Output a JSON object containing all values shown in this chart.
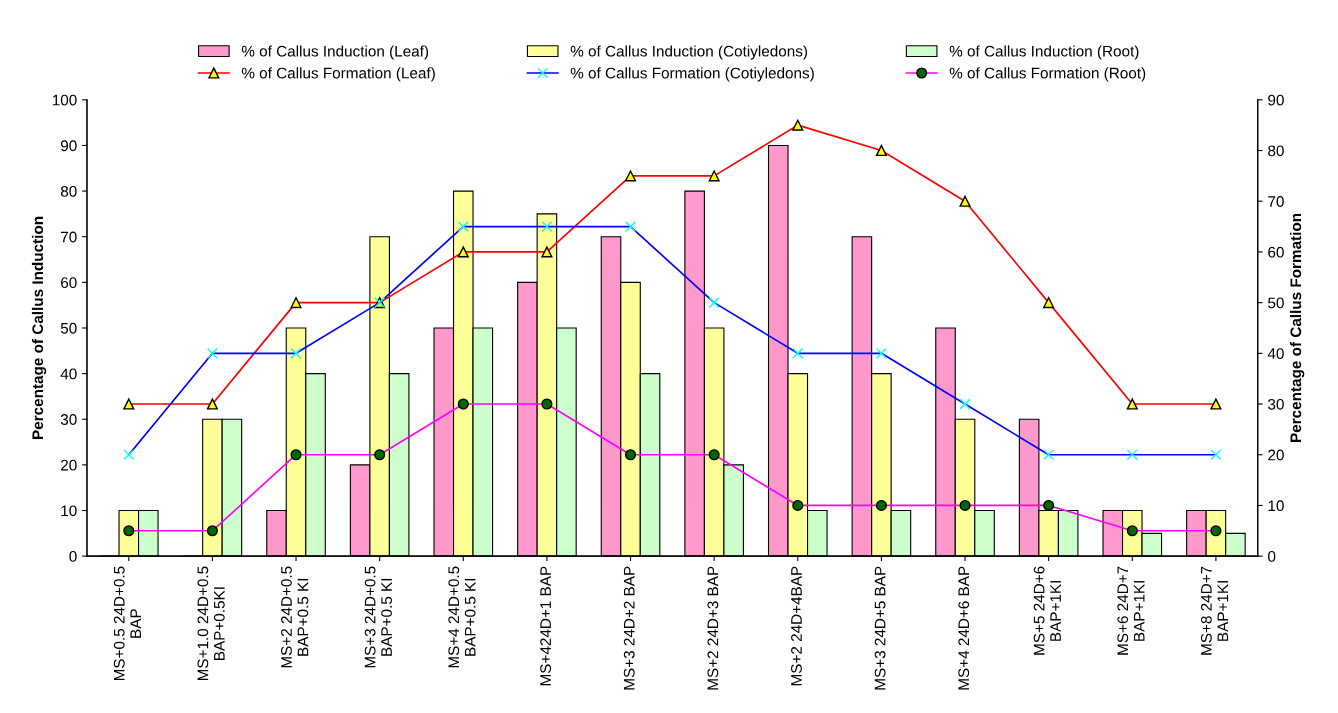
{
  "chart_data": {
    "type": "bar",
    "ylabel": "Percentage of Callus Induction",
    "y2label": "Percentage of Callus Formation",
    "categories": [
      "MS+0.5 24D+0.5\nBAP",
      "MS+1.0 24D+0.5\nBAP+0.5KI",
      "MS+2 24D+0.5\nBAP+0.5 KI",
      "MS+3 24D+0.5\nBAP+0.5 KI",
      "MS+4 24D+0.5\nBAP+0.5 KI",
      "MS+424D+1 BAP",
      "MS+3 24D+2 BAP",
      "MS+2 24D+3 BAP",
      "MS+2 24D+4BAP",
      "MS+3 24D+5 BAP",
      "MS+4 24D+6 BAP",
      "MS+5 24D+6\nBAP+1KI",
      "MS+6 24D+7\nBAP+1KI",
      "MS+8 24D+7\nBAP+1KI"
    ],
    "series": [
      {
        "name": "% of Callus Induction (Leaf)",
        "color": "#ff99cc",
        "values": [
          0,
          0,
          10,
          20,
          50,
          60,
          70,
          80,
          90,
          70,
          50,
          30,
          10,
          10
        ]
      },
      {
        "name": "% of Callus Induction (Cotiyledons)",
        "color": "#ffff99",
        "values": [
          10,
          30,
          50,
          70,
          80,
          75,
          60,
          50,
          40,
          40,
          30,
          10,
          10,
          10
        ]
      },
      {
        "name": "% of Callus Induction (Root)",
        "color": "#ccffcc",
        "values": [
          10,
          30,
          40,
          40,
          50,
          50,
          40,
          20,
          10,
          10,
          10,
          10,
          5,
          5
        ]
      },
      {
        "name": "% of Callus Formation (Leaf)",
        "type": "line",
        "axis": "y2",
        "color": "#ff0000",
        "marker": "triangle",
        "values": [
          30,
          30,
          50,
          50,
          60,
          60,
          75,
          75,
          85,
          80,
          70,
          50,
          30,
          30
        ]
      },
      {
        "name": "% of Callus Formation (Cotiyledons)",
        "type": "line",
        "axis": "y2",
        "color": "#0000ff",
        "marker": "cross",
        "values": [
          20,
          40,
          40,
          50,
          65,
          65,
          65,
          50,
          40,
          40,
          30,
          20,
          20,
          20
        ]
      },
      {
        "name": "% of Callus Formation (Root)",
        "type": "line",
        "axis": "y2",
        "color": "#ff00ff",
        "marker": "circle",
        "values": [
          5,
          5,
          20,
          20,
          30,
          30,
          20,
          20,
          10,
          10,
          10,
          10,
          5,
          5
        ]
      }
    ],
    "ylim": [
      0,
      100
    ],
    "yticks": [
      0,
      10,
      20,
      30,
      40,
      50,
      60,
      70,
      80,
      90,
      100
    ],
    "y2lim": [
      0,
      90
    ],
    "y2ticks": [
      0,
      10,
      20,
      30,
      40,
      50,
      60,
      70,
      80,
      90
    ],
    "legend": "top",
    "grid": false
  }
}
